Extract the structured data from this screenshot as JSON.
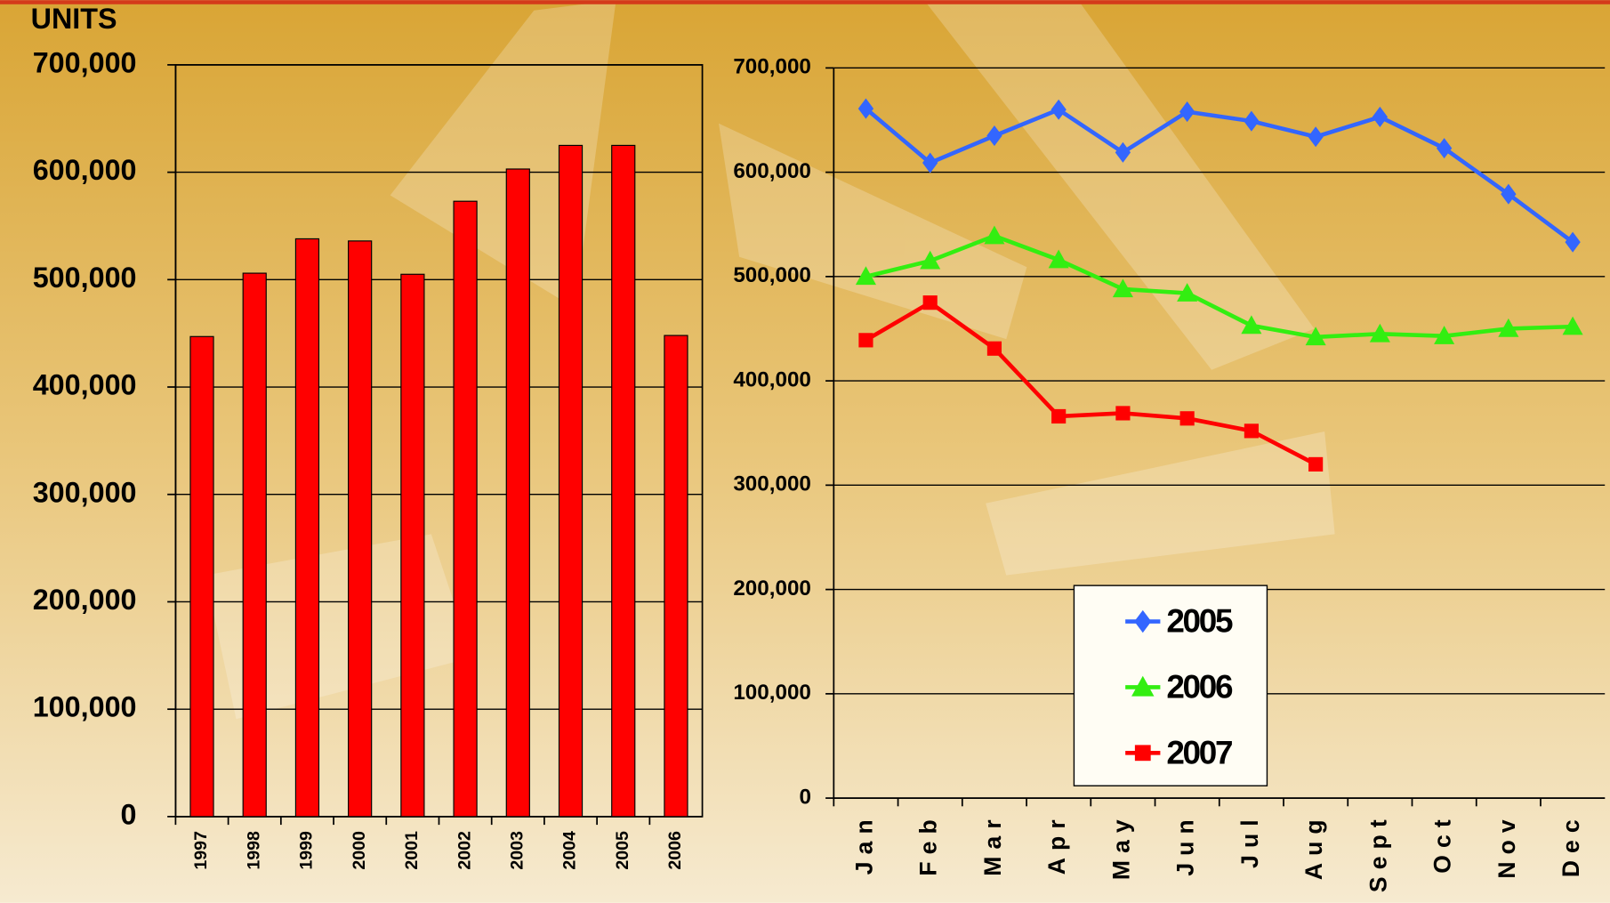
{
  "chart_data": [
    {
      "type": "bar",
      "y_label": "UNITS",
      "categories": [
        "1997",
        "1998",
        "1999",
        "2000",
        "2001",
        "2002",
        "2003",
        "2004",
        "2005",
        "2006"
      ],
      "values": [
        447000,
        506000,
        538000,
        536000,
        505000,
        573000,
        603000,
        625000,
        625000,
        448000
      ],
      "color": "#ff0000",
      "ylim": [
        0,
        700000
      ],
      "yticks": [
        0,
        {
          "value": 100000,
          "label": "100,000"
        },
        {
          "value": 200000,
          "label": "200,000"
        },
        {
          "value": 300000,
          "label": "300,000"
        },
        {
          "value": 400000,
          "label": "400,000"
        },
        {
          "value": 500000,
          "label": "500,000"
        },
        {
          "value": 600000,
          "label": "600,000"
        },
        {
          "value": 700000,
          "label": "700,000"
        }
      ],
      "grid": true
    },
    {
      "type": "line",
      "categories": [
        "Jan",
        "Feb",
        "Mar",
        "Apr",
        "May",
        "Jun",
        "Jul",
        "Aug",
        "Sept",
        "Oct",
        "Nov",
        "Dec"
      ],
      "series": [
        {
          "name": "2005",
          "color": "#3366ff",
          "marker": "diamond",
          "values": [
            661000,
            609000,
            635000,
            660000,
            619000,
            658000,
            649000,
            634000,
            653000,
            623000,
            579000,
            533000
          ]
        },
        {
          "name": "2006",
          "color": "#33ee11",
          "marker": "triangle",
          "values": [
            500000,
            515000,
            539000,
            516000,
            488000,
            484000,
            453000,
            442000,
            445000,
            443000,
            450000,
            452000
          ]
        },
        {
          "name": "2007",
          "color": "#ff0000",
          "marker": "square",
          "values": [
            439000,
            475000,
            431000,
            366000,
            369000,
            364000,
            352000,
            320000,
            null,
            null,
            null,
            null
          ]
        }
      ],
      "ylim": [
        0,
        700000
      ],
      "yticks": [
        0,
        {
          "value": 100000,
          "label": "100,000"
        },
        {
          "value": 200000,
          "label": "200,000"
        },
        {
          "value": 300000,
          "label": "300,000"
        },
        {
          "value": 400000,
          "label": "400,000"
        },
        {
          "value": 500000,
          "label": "500,000"
        },
        {
          "value": 600000,
          "label": "600,000"
        },
        {
          "value": 700000,
          "label": "700,000"
        }
      ],
      "grid": true,
      "legend": "bottom-center"
    }
  ]
}
